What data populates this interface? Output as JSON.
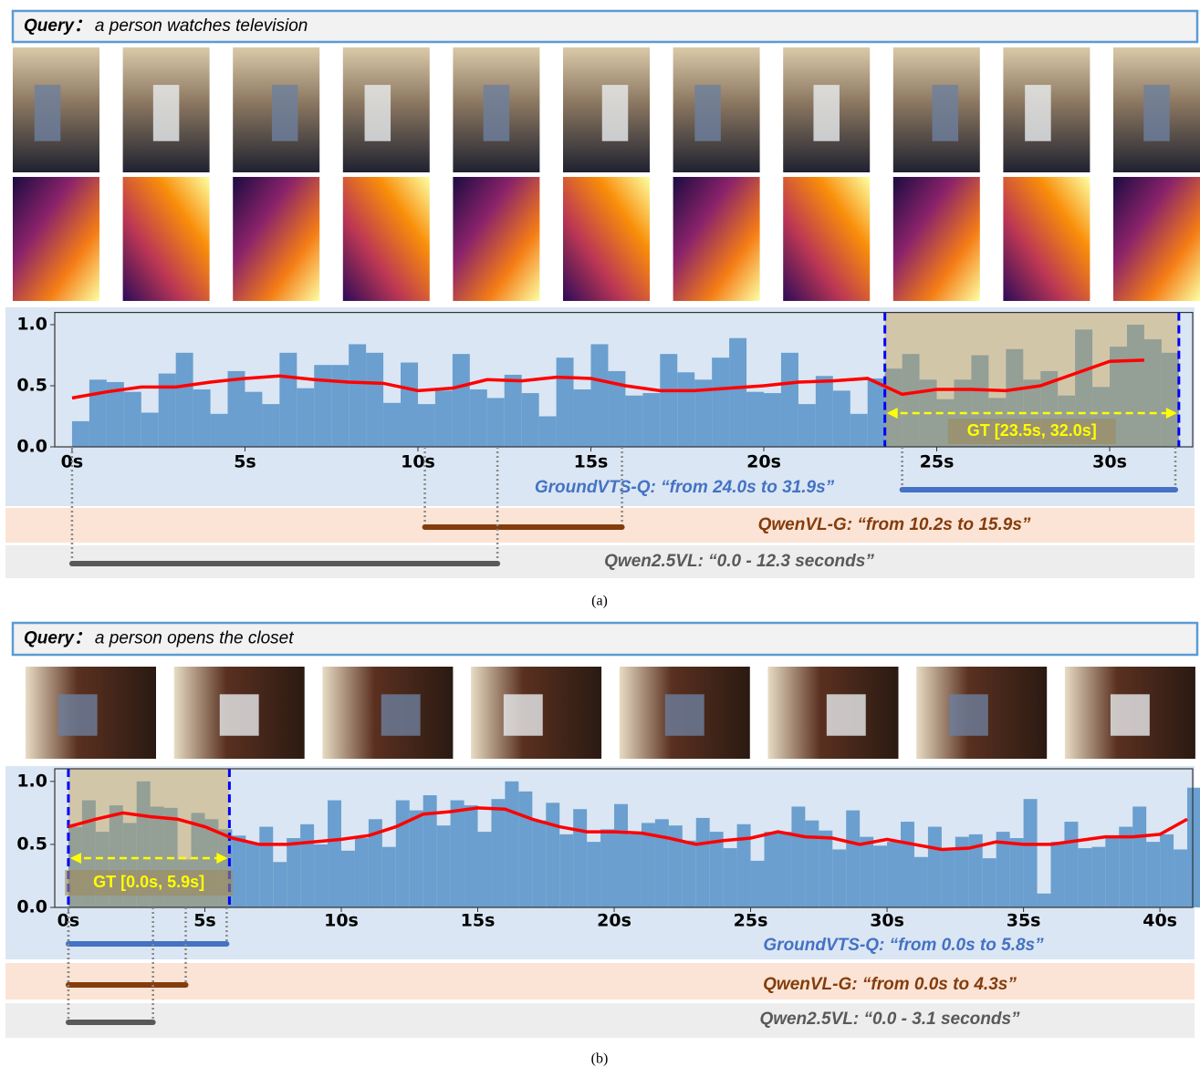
{
  "chart_data": [
    {
      "type": "bar",
      "query_label": "Query：",
      "query": "a person watches television",
      "caption": "(a)",
      "xlim": [
        -0.5,
        32.4
      ],
      "ylim": [
        0,
        1.1
      ],
      "xticks": [
        {
          "value": 0,
          "label": "0s"
        },
        {
          "value": 5,
          "label": "5s"
        },
        {
          "value": 10,
          "label": "10s"
        },
        {
          "value": 15,
          "label": "15s"
        },
        {
          "value": 20,
          "label": "20s"
        },
        {
          "value": 25,
          "label": "25s"
        },
        {
          "value": 30,
          "label": "30s"
        }
      ],
      "yticks": [
        {
          "value": 0,
          "label": "0.0"
        },
        {
          "value": 0.5,
          "label": "0.5"
        },
        {
          "value": 1,
          "label": "1.0"
        }
      ],
      "bars": {
        "color": "#6a9fcf",
        "x": [
          0,
          0.5,
          1,
          1.5,
          2,
          2.5,
          3,
          3.5,
          4,
          4.5,
          5,
          5.5,
          6,
          6.5,
          7,
          7.5,
          8,
          8.5,
          9,
          9.5,
          10,
          10.5,
          11,
          11.5,
          12,
          12.5,
          13,
          13.5,
          14,
          14.5,
          15,
          15.5,
          16,
          16.5,
          17,
          17.5,
          18,
          18.5,
          19,
          19.5,
          20,
          20.5,
          21,
          21.5,
          22,
          22.5,
          23,
          23.5,
          24,
          24.5,
          25,
          25.5,
          26,
          26.5,
          27,
          27.5,
          28,
          28.5,
          29,
          29.5,
          30,
          30.5,
          31,
          31.5
        ],
        "values": [
          0.21,
          0.55,
          0.53,
          0.45,
          0.28,
          0.6,
          0.77,
          0.47,
          0.27,
          0.62,
          0.45,
          0.35,
          0.77,
          0.48,
          0.67,
          0.67,
          0.84,
          0.77,
          0.36,
          0.69,
          0.35,
          0.46,
          0.76,
          0.47,
          0.4,
          0.59,
          0.44,
          0.25,
          0.73,
          0.47,
          0.84,
          0.62,
          0.42,
          0.44,
          0.76,
          0.61,
          0.55,
          0.73,
          0.89,
          0.45,
          0.44,
          0.77,
          0.35,
          0.58,
          0.46,
          0.27,
          0.56,
          0.64,
          0.76,
          0.55,
          0.39,
          0.55,
          0.75,
          0.4,
          0.8,
          0.55,
          0.62,
          0.42,
          0.96,
          0.49,
          0.82,
          1.0,
          0.88,
          0.77
        ]
      },
      "curve": {
        "color": "#ff0000",
        "x": [
          0,
          1,
          2,
          3,
          4,
          5,
          6,
          7,
          8,
          9,
          10,
          11,
          12,
          13,
          14,
          15,
          16,
          17,
          18,
          19,
          20,
          21,
          22,
          23,
          24,
          25,
          26,
          27,
          28,
          29,
          30,
          31
        ],
        "values": [
          0.4,
          0.45,
          0.49,
          0.49,
          0.53,
          0.56,
          0.58,
          0.55,
          0.53,
          0.52,
          0.46,
          0.48,
          0.55,
          0.54,
          0.57,
          0.56,
          0.5,
          0.46,
          0.46,
          0.48,
          0.5,
          0.53,
          0.54,
          0.56,
          0.43,
          0.47,
          0.47,
          0.46,
          0.5,
          0.6,
          0.7,
          0.71
        ]
      },
      "gt": {
        "label": "GT [23.5s, 32.0s]",
        "start": 23.5,
        "end": 32.0
      },
      "predictions": [
        {
          "label": "GroundVTS-Q: “from 24.0s to 31.9s”",
          "start": 24.0,
          "end": 31.9,
          "color": "#4472c4"
        },
        {
          "label": "QwenVL-G: “from 10.2s to 15.9s”",
          "start": 10.2,
          "end": 15.9,
          "color": "#843c0c"
        },
        {
          "label": "Qwen2.5VL: “0.0 - 12.3 seconds”",
          "start": 0.0,
          "end": 12.3,
          "color": "#595959"
        }
      ]
    },
    {
      "type": "bar",
      "query_label": "Query：",
      "query": "a person opens the closet",
      "caption": "(b)",
      "xlim": [
        -0.5,
        41.2
      ],
      "ylim": [
        0,
        1.1
      ],
      "xticks": [
        {
          "value": 0,
          "label": "0s"
        },
        {
          "value": 5,
          "label": "5s"
        },
        {
          "value": 10,
          "label": "10s"
        },
        {
          "value": 15,
          "label": "15s"
        },
        {
          "value": 20,
          "label": "20s"
        },
        {
          "value": 25,
          "label": "25s"
        },
        {
          "value": 30,
          "label": "30s"
        },
        {
          "value": 35,
          "label": "35s"
        },
        {
          "value": 40,
          "label": "40s"
        }
      ],
      "yticks": [
        {
          "value": 0,
          "label": "0.0"
        },
        {
          "value": 0.5,
          "label": "0.5"
        },
        {
          "value": 1,
          "label": "1.0"
        }
      ],
      "bars": {
        "color": "#6a9fcf",
        "x": [
          0,
          0.5,
          1,
          1.5,
          2,
          2.5,
          3,
          3.5,
          4,
          4.5,
          5,
          5.5,
          6,
          6.5,
          7,
          7.5,
          8,
          8.5,
          9,
          9.5,
          10,
          10.5,
          11,
          11.5,
          12,
          12.5,
          13,
          13.5,
          14,
          14.5,
          15,
          15.5,
          16,
          16.5,
          17,
          17.5,
          18,
          18.5,
          19,
          19.5,
          20,
          20.5,
          21,
          21.5,
          22,
          22.5,
          23,
          23.5,
          24,
          24.5,
          25,
          25.5,
          26,
          26.5,
          27,
          27.5,
          28,
          28.5,
          29,
          29.5,
          30,
          30.5,
          31,
          31.5,
          32,
          32.5,
          33,
          33.5,
          34,
          34.5,
          35,
          35.5,
          36,
          36.5,
          37,
          37.5,
          38,
          38.5,
          39,
          39.5,
          40,
          40.5,
          41
        ],
        "values": [
          0.64,
          0.85,
          0.6,
          0.81,
          0.67,
          1.0,
          0.8,
          0.79,
          0.38,
          0.75,
          0.7,
          0.62,
          0.57,
          0.51,
          0.64,
          0.36,
          0.55,
          0.66,
          0.5,
          0.85,
          0.45,
          0.55,
          0.7,
          0.48,
          0.85,
          0.77,
          0.89,
          0.65,
          0.85,
          0.81,
          0.6,
          0.86,
          1.0,
          0.92,
          0.69,
          0.83,
          0.58,
          0.78,
          0.52,
          0.62,
          0.82,
          0.58,
          0.67,
          0.7,
          0.65,
          0.53,
          0.71,
          0.6,
          0.47,
          0.66,
          0.37,
          0.6,
          0.6,
          0.8,
          0.69,
          0.61,
          0.46,
          0.77,
          0.56,
          0.49,
          0.52,
          0.68,
          0.4,
          0.64,
          0.45,
          0.56,
          0.58,
          0.39,
          0.6,
          0.55,
          0.86,
          0.11,
          0.52,
          0.68,
          0.47,
          0.48,
          0.55,
          0.64,
          0.8,
          0.52,
          0.58,
          0.46,
          0.95
        ]
      },
      "curve": {
        "color": "#ff0000",
        "x": [
          0,
          1,
          2,
          3,
          4,
          5,
          6,
          7,
          8,
          9,
          10,
          11,
          12,
          13,
          14,
          15,
          16,
          17,
          18,
          19,
          20,
          21,
          22,
          23,
          24,
          25,
          26,
          27,
          28,
          29,
          30,
          31,
          32,
          33,
          34,
          35,
          36,
          37,
          38,
          39,
          40,
          41
        ],
        "values": [
          0.64,
          0.7,
          0.75,
          0.72,
          0.7,
          0.64,
          0.55,
          0.5,
          0.5,
          0.52,
          0.54,
          0.57,
          0.64,
          0.74,
          0.76,
          0.79,
          0.78,
          0.7,
          0.64,
          0.6,
          0.6,
          0.59,
          0.55,
          0.5,
          0.53,
          0.55,
          0.6,
          0.56,
          0.55,
          0.5,
          0.54,
          0.5,
          0.46,
          0.47,
          0.52,
          0.5,
          0.5,
          0.53,
          0.56,
          0.56,
          0.58,
          0.7
        ]
      },
      "gt": {
        "label": "GT [0.0s, 5.9s]",
        "start": 0.0,
        "end": 5.9
      },
      "predictions": [
        {
          "label": "GroundVTS-Q: “from 0.0s to 5.8s”",
          "start": 0.0,
          "end": 5.8,
          "color": "#4472c4"
        },
        {
          "label": "QwenVL-G: “from 0.0s to 4.3s”",
          "start": 0.0,
          "end": 4.3,
          "color": "#843c0c"
        },
        {
          "label": "Qwen2.5VL: “0.0 - 3.1 seconds”",
          "start": 0.0,
          "end": 3.1,
          "color": "#595959"
        }
      ]
    }
  ]
}
